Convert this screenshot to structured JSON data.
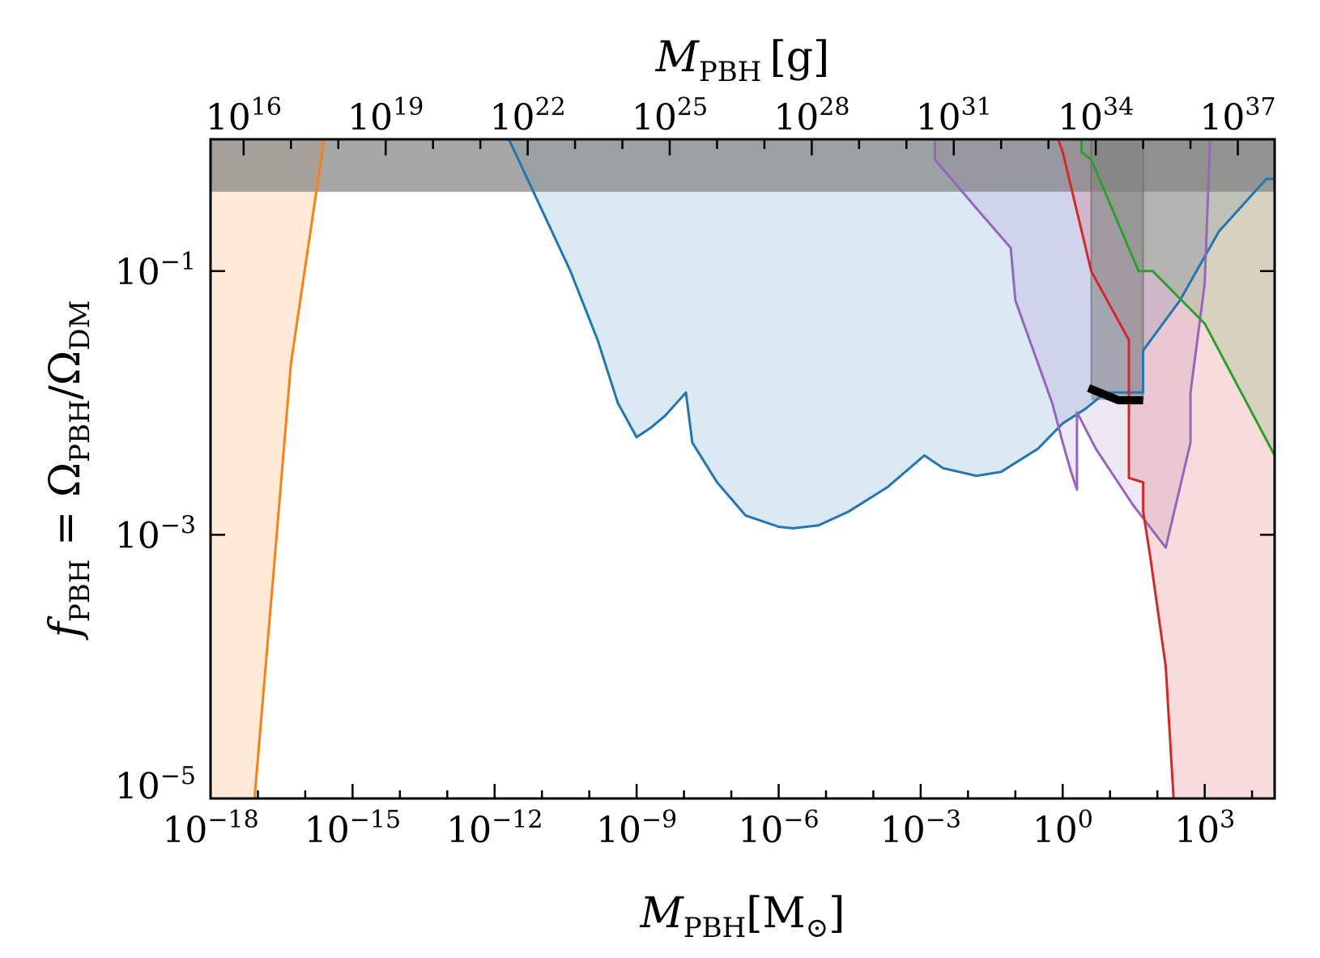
{
  "chart_data": {
    "type": "area",
    "title": "",
    "xlabel": {
      "main": "M",
      "sub": "PBH",
      "unit": "[M",
      "unit_sub": "⊙",
      "close": "]"
    },
    "top_xlabel": {
      "main": "M",
      "sub": "PBH",
      "unit": "[g]"
    },
    "ylabel": {
      "lhs": "f",
      "lhs_sub": "PBH",
      "eq": " = Ω",
      "num_sub": "PBH",
      "slash": "/Ω",
      "den_sub": "DM"
    },
    "x_scale": "log",
    "y_scale": "log",
    "xlim": [
      1e-18,
      30000
    ],
    "ylim": [
      1e-05,
      1
    ],
    "top_xlim_g": [
      2000000000000000.0,
      6e+37
    ],
    "x_ticks": [
      {
        "base": "10",
        "exp": "−18",
        "value": 1e-18
      },
      {
        "base": "10",
        "exp": "−15",
        "value": 1e-15
      },
      {
        "base": "10",
        "exp": "−12",
        "value": 1e-12
      },
      {
        "base": "10",
        "exp": "−9",
        "value": 1e-09
      },
      {
        "base": "10",
        "exp": "−6",
        "value": 1e-06
      },
      {
        "base": "10",
        "exp": "−3",
        "value": 0.001
      },
      {
        "base": "10",
        "exp": "0",
        "value": 1
      },
      {
        "base": "10",
        "exp": "3",
        "value": 1000
      }
    ],
    "y_ticks": [
      {
        "base": "10",
        "exp": "−1",
        "value": 0.1
      },
      {
        "base": "10",
        "exp": "−3",
        "value": 0.001
      },
      {
        "base": "10",
        "exp": "−5",
        "value": 1e-05
      }
    ],
    "top_ticks": [
      {
        "base": "10",
        "exp": "16",
        "value": 1e+16
      },
      {
        "base": "10",
        "exp": "19",
        "value": 1e+19
      },
      {
        "base": "10",
        "exp": "22",
        "value": 1e+22
      },
      {
        "base": "10",
        "exp": "25",
        "value": 1e+25
      },
      {
        "base": "10",
        "exp": "28",
        "value": 1e+28
      },
      {
        "base": "10",
        "exp": "31",
        "value": 1e+31
      },
      {
        "base": "10",
        "exp": "34",
        "value": 1e+34
      },
      {
        "base": "10",
        "exp": "37",
        "value": 1e+37
      }
    ],
    "grey_band": {
      "y_from": 0.4,
      "y_to": 1,
      "color": "#808080"
    },
    "grey_vertical_band": {
      "x_from": 4,
      "x_to": 50,
      "color": "#808080"
    },
    "series": [
      {
        "color": "#ff7f0e",
        "points": [
          [
            1e-18,
            1e-05
          ],
          [
            8.5e-18,
            1e-05
          ],
          [
            2.5e-17,
            0.001
          ],
          [
            5e-17,
            0.02
          ],
          [
            2.5e-16,
            1
          ]
        ]
      },
      {
        "color": "#1f77b4",
        "points": [
          [
            2e-12,
            1
          ],
          [
            4e-11,
            0.1
          ],
          [
            1.5e-10,
            0.03
          ],
          [
            4e-10,
            0.01
          ],
          [
            1e-09,
            0.0055
          ],
          [
            2e-09,
            0.0065
          ],
          [
            4e-09,
            0.008
          ],
          [
            1.1e-08,
            0.012
          ],
          [
            1.5e-08,
            0.005
          ],
          [
            5e-08,
            0.0025
          ],
          [
            2e-07,
            0.0014
          ],
          [
            1e-06,
            0.00115
          ],
          [
            2e-06,
            0.00112
          ],
          [
            7e-06,
            0.00118
          ],
          [
            3e-05,
            0.0015
          ],
          [
            0.0002,
            0.0023
          ],
          [
            0.0012,
            0.004
          ],
          [
            0.003,
            0.0032
          ],
          [
            0.015,
            0.0028
          ],
          [
            0.05,
            0.003
          ],
          [
            0.3,
            0.0045
          ],
          [
            1,
            0.007
          ],
          [
            3,
            0.009
          ],
          [
            8,
            0.012
          ],
          [
            50,
            0.012
          ],
          [
            50,
            0.025
          ],
          [
            300,
            0.06
          ],
          [
            2000,
            0.2
          ],
          [
            20000,
            0.5
          ],
          [
            30000,
            0.5
          ]
        ]
      },
      {
        "color": "#9467bd",
        "points": [
          [
            0.002,
            1
          ],
          [
            0.002,
            0.7
          ],
          [
            0.015,
            0.3
          ],
          [
            0.08,
            0.15
          ],
          [
            0.1,
            0.06
          ],
          [
            0.2,
            0.03
          ],
          [
            0.6,
            0.01
          ],
          [
            1,
            0.005
          ],
          [
            1.5,
            0.003
          ],
          [
            2,
            0.0022
          ],
          [
            2,
            0.0085
          ],
          [
            5,
            0.0045
          ],
          [
            30,
            0.0017
          ],
          [
            150,
            0.0008
          ],
          [
            500,
            0.005
          ],
          [
            500,
            0.012
          ],
          [
            1000,
            0.08
          ],
          [
            1300,
            1
          ]
        ]
      },
      {
        "color": "#d62728",
        "points": [
          [
            0.8,
            1
          ],
          [
            1,
            0.8
          ],
          [
            4,
            0.1
          ],
          [
            25,
            0.03
          ],
          [
            25,
            0.0027
          ],
          [
            50,
            0.0025
          ],
          [
            50,
            0.0015
          ],
          [
            70,
            0.0007
          ],
          [
            150,
            0.0001
          ],
          [
            220,
            1e-05
          ],
          [
            30000,
            1e-05
          ]
        ]
      },
      {
        "color": "#2ca02c",
        "points": [
          [
            2.5,
            1
          ],
          [
            2.5,
            0.8
          ],
          [
            4,
            0.7
          ],
          [
            40,
            0.1
          ],
          [
            80,
            0.1
          ],
          [
            1000,
            0.04
          ],
          [
            30000,
            0.004
          ]
        ]
      }
    ],
    "black_bar_points": [
      [
        3.5,
        0.013
      ],
      [
        15,
        0.0105
      ],
      [
        50,
        0.0105
      ]
    ]
  }
}
